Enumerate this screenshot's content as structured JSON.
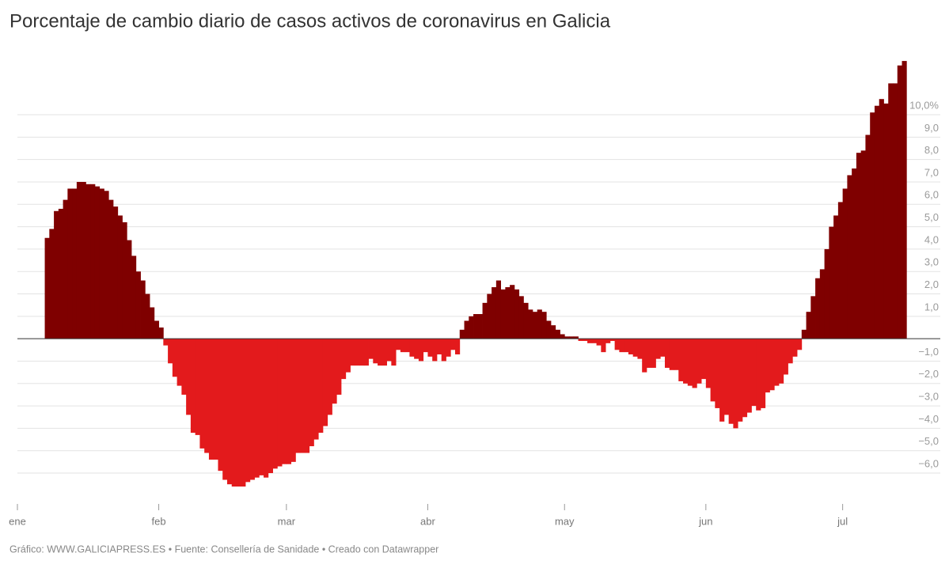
{
  "chart_data": {
    "type": "bar",
    "title": "Porcentaje de cambio diario de casos activos de coronavirus en Galicia",
    "footer": "Gráfico: WWW.GALICIAPRESS.ES • Fuente: Consellería de Sanidade • Creado con Datawrapper",
    "colors": {
      "positive": "#7f0000",
      "negative": "#e31a1c"
    },
    "grid": true,
    "xlim": [
      0,
      201.2
    ],
    "xticks": [
      {
        "value": 0,
        "label": "ene"
      },
      {
        "value": 31,
        "label": "feb"
      },
      {
        "value": 59,
        "label": "mar"
      },
      {
        "value": 90,
        "label": "abr"
      },
      {
        "value": 120,
        "label": "may"
      },
      {
        "value": 151,
        "label": "jun"
      },
      {
        "value": 181,
        "label": "jul"
      }
    ],
    "ylim": [
      -7.2,
      12.65
    ],
    "yticks": [
      {
        "value": 10,
        "label": "10,0%"
      },
      {
        "value": 9,
        "label": "9,0"
      },
      {
        "value": 8,
        "label": "8,0"
      },
      {
        "value": 7,
        "label": "7,0"
      },
      {
        "value": 6,
        "label": "6,0"
      },
      {
        "value": 5,
        "label": "5,0"
      },
      {
        "value": 4,
        "label": "4,0"
      },
      {
        "value": 3,
        "label": "3,0"
      },
      {
        "value": 2,
        "label": "2,0"
      },
      {
        "value": 1,
        "label": "1,0"
      },
      {
        "value": -1,
        "label": "−1,0"
      },
      {
        "value": -2,
        "label": "−2,0"
      },
      {
        "value": -3,
        "label": "−3,0"
      },
      {
        "value": -4,
        "label": "−4,0"
      },
      {
        "value": -5,
        "label": "−5,0"
      },
      {
        "value": -6,
        "label": "−6,0"
      }
    ],
    "x": [
      6,
      7,
      8,
      9,
      10,
      11,
      12,
      13,
      14,
      15,
      16,
      17,
      18,
      19,
      20,
      21,
      22,
      23,
      24,
      25,
      26,
      27,
      28,
      29,
      30,
      31,
      32,
      33,
      34,
      35,
      36,
      37,
      38,
      39,
      40,
      41,
      42,
      43,
      44,
      45,
      46,
      47,
      48,
      49,
      50,
      51,
      52,
      53,
      54,
      55,
      56,
      57,
      58,
      59,
      60,
      61,
      62,
      63,
      64,
      65,
      66,
      67,
      68,
      69,
      70,
      71,
      72,
      73,
      74,
      75,
      76,
      77,
      78,
      79,
      80,
      81,
      82,
      83,
      84,
      85,
      86,
      87,
      88,
      89,
      90,
      91,
      92,
      93,
      94,
      95,
      96,
      97,
      98,
      99,
      100,
      101,
      102,
      103,
      104,
      105,
      106,
      107,
      108,
      109,
      110,
      111,
      112,
      113,
      114,
      115,
      116,
      117,
      118,
      119,
      120,
      121,
      122,
      123,
      124,
      125,
      126,
      127,
      128,
      129,
      130,
      131,
      132,
      133,
      134,
      135,
      136,
      137,
      138,
      139,
      140,
      141,
      142,
      143,
      144,
      145,
      146,
      147,
      148,
      149,
      150,
      151,
      152,
      153,
      154,
      155,
      156,
      157,
      158,
      159,
      160,
      161,
      162,
      163,
      164,
      165,
      166,
      167,
      168,
      169,
      170,
      171,
      172,
      173,
      174,
      175,
      176,
      177,
      178,
      179,
      180,
      181,
      182,
      183,
      184,
      185,
      186,
      187,
      188,
      189,
      190,
      191,
      192,
      193,
      194
    ],
    "values": [
      4.5,
      4.9,
      5.7,
      5.8,
      6.2,
      6.7,
      6.7,
      7.0,
      7.0,
      6.9,
      6.9,
      6.8,
      6.7,
      6.6,
      6.2,
      5.9,
      5.5,
      5.2,
      4.4,
      3.7,
      3.0,
      2.6,
      2.0,
      1.4,
      0.8,
      0.5,
      -0.3,
      -1.1,
      -1.7,
      -2.1,
      -2.5,
      -3.4,
      -4.2,
      -4.3,
      -4.9,
      -5.1,
      -5.4,
      -5.4,
      -5.9,
      -6.3,
      -6.5,
      -6.6,
      -6.6,
      -6.6,
      -6.4,
      -6.3,
      -6.2,
      -6.1,
      -6.2,
      -6.0,
      -5.8,
      -5.7,
      -5.6,
      -5.6,
      -5.5,
      -5.1,
      -5.1,
      -5.1,
      -4.8,
      -4.5,
      -4.2,
      -3.9,
      -3.4,
      -2.9,
      -2.5,
      -1.8,
      -1.5,
      -1.2,
      -1.2,
      -1.2,
      -1.2,
      -0.9,
      -1.1,
      -1.2,
      -1.2,
      -1.0,
      -1.2,
      -0.5,
      -0.6,
      -0.6,
      -0.8,
      -0.9,
      -1.0,
      -0.6,
      -0.8,
      -1.0,
      -0.7,
      -1.0,
      -0.8,
      -0.5,
      -0.7,
      0.4,
      0.8,
      1.0,
      1.1,
      1.1,
      1.6,
      2.0,
      2.3,
      2.6,
      2.2,
      2.3,
      2.4,
      2.2,
      1.9,
      1.6,
      1.3,
      1.2,
      1.3,
      1.2,
      0.8,
      0.6,
      0.4,
      0.2,
      0.1,
      0.1,
      0.1,
      -0.1,
      -0.1,
      -0.2,
      -0.2,
      -0.3,
      -0.6,
      -0.2,
      -0.1,
      -0.5,
      -0.6,
      -0.6,
      -0.7,
      -0.8,
      -0.9,
      -1.5,
      -1.3,
      -1.3,
      -0.9,
      -0.8,
      -1.3,
      -1.4,
      -1.4,
      -1.9,
      -2.0,
      -2.1,
      -2.2,
      -2.0,
      -1.8,
      -2.2,
      -2.8,
      -3.1,
      -3.7,
      -3.4,
      -3.8,
      -4.0,
      -3.7,
      -3.5,
      -3.3,
      -3.0,
      -3.2,
      -3.1,
      -2.4,
      -2.3,
      -2.1,
      -2.0,
      -1.6,
      -1.1,
      -0.8,
      -0.5,
      0.4,
      1.2,
      1.9,
      2.7,
      3.1,
      4.0,
      5.0,
      5.5,
      6.1,
      6.7,
      7.3,
      7.6,
      8.3,
      8.4,
      9.1,
      10.1,
      10.4,
      10.7,
      10.5,
      11.4,
      11.4,
      12.2,
      12.4
    ]
  }
}
